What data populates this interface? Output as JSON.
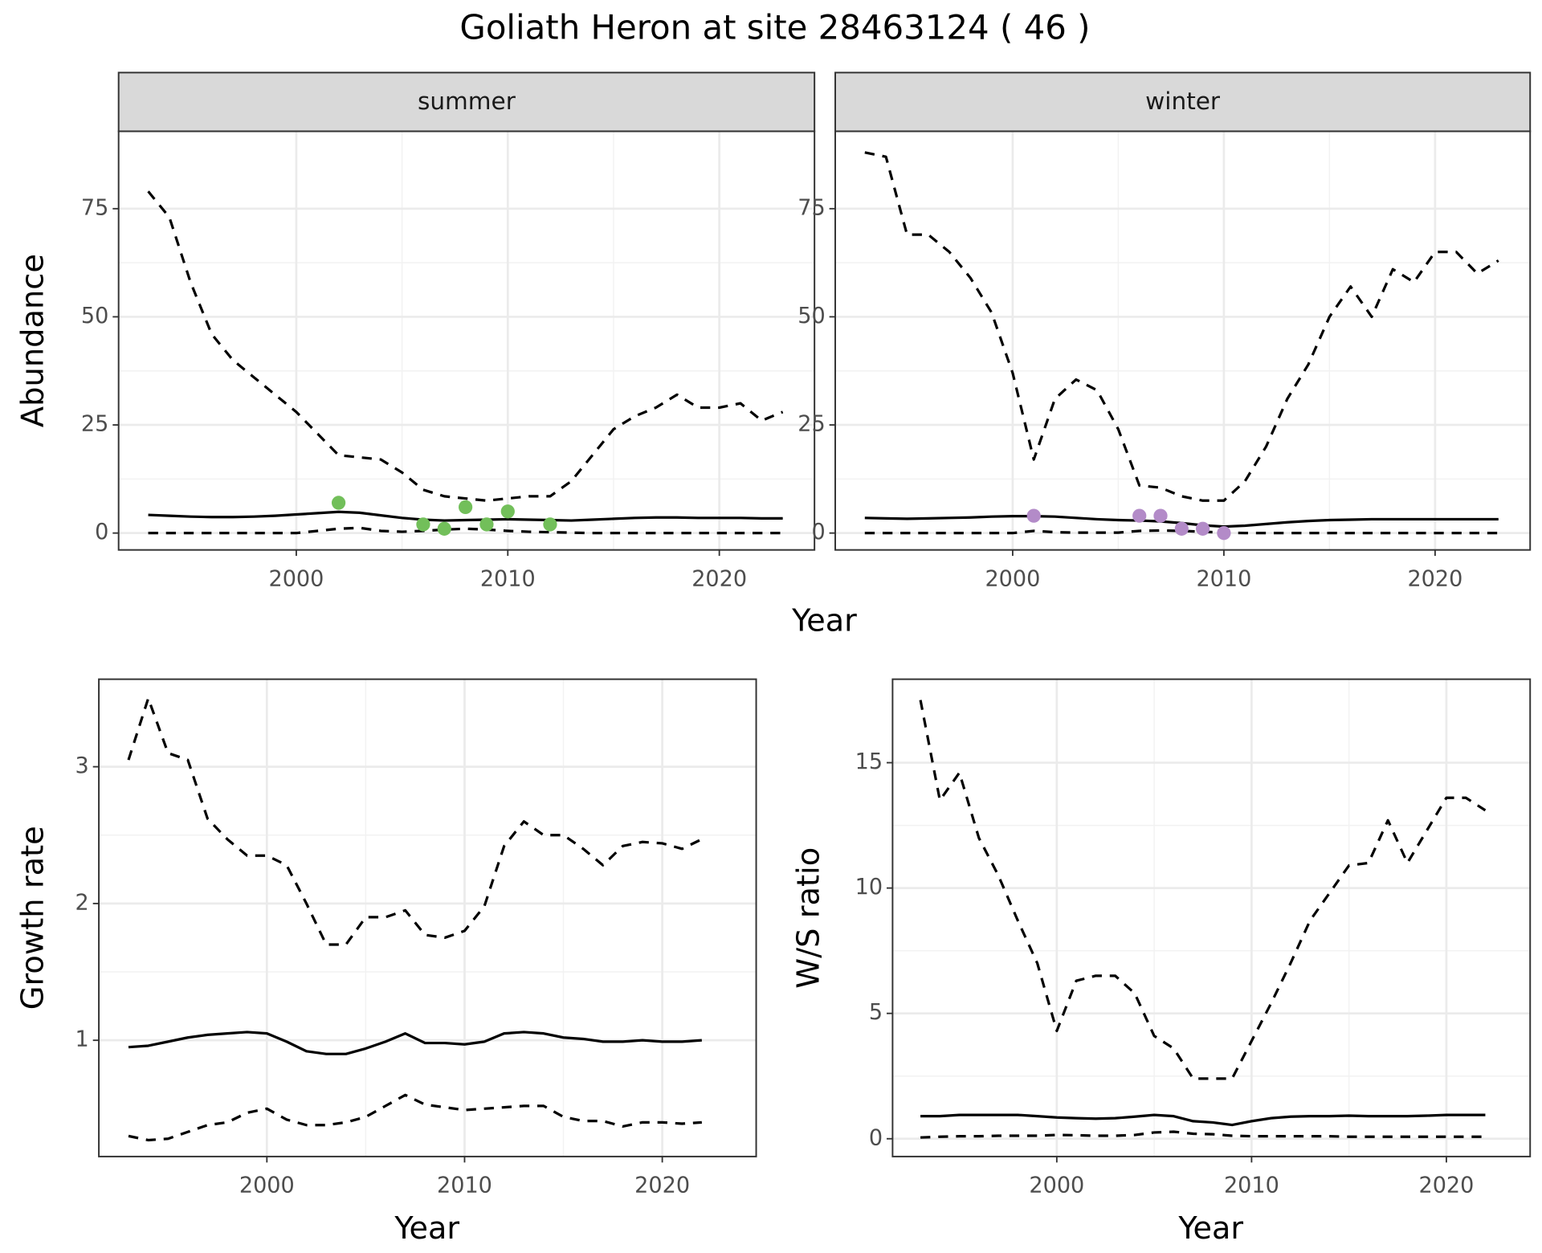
{
  "title": "Goliath Heron at site 28463124 ( 46 )",
  "chart_data": [
    {
      "type": "line",
      "facet": "summer",
      "xlabel": "Year",
      "ylabel": "Abundance",
      "xlim": [
        1991.6,
        2024.5
      ],
      "ylim": [
        -3.9,
        92.9
      ],
      "xticks": [
        2000,
        2010,
        2020
      ],
      "yticks": [
        0,
        25,
        50,
        75
      ],
      "grid": true,
      "series": [
        {
          "style": "dashed",
          "color": "#000000",
          "x": [
            1993,
            1994,
            1995,
            1996,
            1997,
            1998,
            1999,
            2000,
            2001,
            2002,
            2003,
            2004,
            2005,
            2006,
            2007,
            2008,
            2009,
            2010,
            2011,
            2012,
            2013,
            2014,
            2015,
            2016,
            2017,
            2018,
            2019,
            2020,
            2021,
            2022,
            2023
          ],
          "values": [
            79,
            73,
            58,
            46,
            40,
            36,
            32,
            28,
            23,
            18,
            17.5,
            17,
            14,
            10,
            8.5,
            8,
            7.5,
            8,
            8.5,
            8.5,
            12,
            18,
            24,
            27,
            29,
            32,
            29,
            29,
            30,
            26,
            28
          ]
        },
        {
          "style": "solid",
          "color": "#000000",
          "x": [
            1993,
            1994,
            1995,
            1996,
            1997,
            1998,
            1999,
            2000,
            2001,
            2002,
            2003,
            2004,
            2005,
            2006,
            2007,
            2008,
            2009,
            2010,
            2011,
            2012,
            2013,
            2014,
            2015,
            2016,
            2017,
            2018,
            2019,
            2020,
            2021,
            2022,
            2023
          ],
          "values": [
            4.2,
            4,
            3.8,
            3.7,
            3.7,
            3.8,
            4,
            4.3,
            4.6,
            4.9,
            4.7,
            4.1,
            3.5,
            3.1,
            2.9,
            3,
            3.1,
            3.2,
            3.1,
            3,
            2.9,
            3.1,
            3.3,
            3.5,
            3.6,
            3.6,
            3.5,
            3.5,
            3.5,
            3.4,
            3.4
          ]
        },
        {
          "style": "dashed",
          "color": "#000000",
          "x": [
            1993,
            1994,
            1995,
            1996,
            1997,
            1998,
            1999,
            2000,
            2001,
            2002,
            2003,
            2004,
            2005,
            2006,
            2007,
            2008,
            2009,
            2010,
            2011,
            2012,
            2013,
            2014,
            2015,
            2016,
            2017,
            2018,
            2019,
            2020,
            2021,
            2022,
            2023
          ],
          "values": [
            0,
            0,
            0,
            0,
            0,
            0,
            0,
            0,
            0.5,
            1,
            1.2,
            0.5,
            0.3,
            0.5,
            0.8,
            1,
            0.8,
            0.5,
            0.3,
            0.2,
            0.1,
            0,
            0,
            0,
            0,
            0,
            0,
            0,
            0,
            0,
            0
          ]
        },
        {
          "style": "points",
          "color": "#72bf5a",
          "x": [
            2002,
            2006,
            2007,
            2008,
            2009,
            2010,
            2012
          ],
          "values": [
            7,
            2,
            1,
            6,
            2,
            5,
            2
          ]
        }
      ]
    },
    {
      "type": "line",
      "facet": "winter",
      "xlim": [
        1991.6,
        2024.5
      ],
      "ylim": [
        -3.9,
        92.9
      ],
      "xticks": [
        2000,
        2010,
        2020
      ],
      "yticks": [
        0,
        25,
        50,
        75
      ],
      "grid": true,
      "series": [
        {
          "style": "dashed",
          "color": "#000000",
          "x": [
            1993,
            1994,
            1995,
            1996,
            1997,
            1998,
            1999,
            2000,
            2001,
            2002,
            2003,
            2004,
            2005,
            2006,
            2007,
            2008,
            2009,
            2010,
            2011,
            2012,
            2013,
            2014,
            2015,
            2016,
            2017,
            2018,
            2019,
            2020,
            2021,
            2022,
            2023
          ],
          "values": [
            88,
            87,
            69,
            69,
            65,
            59,
            51,
            37,
            17,
            31,
            35.5,
            33,
            24,
            11,
            10.5,
            8.5,
            7.5,
            7.5,
            12,
            20,
            31,
            39,
            50,
            57,
            50,
            61,
            58,
            65,
            65,
            60,
            63
          ]
        },
        {
          "style": "solid",
          "color": "#000000",
          "x": [
            1993,
            1994,
            1995,
            1996,
            1997,
            1998,
            1999,
            2000,
            2001,
            2002,
            2003,
            2004,
            2005,
            2006,
            2007,
            2008,
            2009,
            2010,
            2011,
            2012,
            2013,
            2014,
            2015,
            2016,
            2017,
            2018,
            2019,
            2020,
            2021,
            2022,
            2023
          ],
          "values": [
            3.5,
            3.4,
            3.3,
            3.4,
            3.5,
            3.6,
            3.8,
            3.9,
            3.9,
            3.8,
            3.5,
            3.2,
            3,
            2.9,
            2.7,
            2.3,
            1.8,
            1.5,
            1.7,
            2.1,
            2.5,
            2.8,
            3,
            3.1,
            3.2,
            3.2,
            3.2,
            3.2,
            3.2,
            3.2,
            3.2
          ]
        },
        {
          "style": "dashed",
          "color": "#000000",
          "x": [
            1993,
            1994,
            1995,
            1996,
            1997,
            1998,
            1999,
            2000,
            2001,
            2002,
            2003,
            2004,
            2005,
            2006,
            2007,
            2008,
            2009,
            2010,
            2011,
            2012,
            2013,
            2014,
            2015,
            2016,
            2017,
            2018,
            2019,
            2020,
            2021,
            2022,
            2023
          ],
          "values": [
            0,
            0,
            0,
            0,
            0,
            0,
            0,
            0,
            0.5,
            0.2,
            0.1,
            0.1,
            0.1,
            0.5,
            0.6,
            0.5,
            0.3,
            0.1,
            0,
            0,
            0,
            0,
            0,
            0,
            0,
            0,
            0,
            0,
            0,
            0,
            0
          ]
        },
        {
          "style": "points",
          "color": "#b38bc8",
          "x": [
            2001,
            2006,
            2007,
            2008,
            2009,
            2010
          ],
          "values": [
            4,
            4,
            4,
            1,
            1,
            0
          ]
        }
      ]
    },
    {
      "type": "line",
      "xlabel": "Year",
      "ylabel": "Growth rate",
      "xlim": [
        1991.5,
        2024.75
      ],
      "ylim": [
        0.15,
        3.64
      ],
      "xticks": [
        2000,
        2010,
        2020
      ],
      "yticks": [
        1,
        2,
        3
      ],
      "grid": true,
      "series": [
        {
          "style": "dashed",
          "color": "#000000",
          "x": [
            1993,
            1994,
            1995,
            1996,
            1997,
            1998,
            1999,
            2000,
            2001,
            2002,
            2003,
            2004,
            2005,
            2006,
            2007,
            2008,
            2009,
            2010,
            2011,
            2012,
            2013,
            2014,
            2015,
            2016,
            2017,
            2018,
            2019,
            2020,
            2021,
            2022
          ],
          "values": [
            3.05,
            3.5,
            3.1,
            3.05,
            2.62,
            2.47,
            2.35,
            2.35,
            2.28,
            2.0,
            1.7,
            1.7,
            1.9,
            1.9,
            1.95,
            1.77,
            1.75,
            1.8,
            1.98,
            2.42,
            2.6,
            2.5,
            2.5,
            2.4,
            2.28,
            2.42,
            2.45,
            2.44,
            2.4,
            2.47
          ]
        },
        {
          "style": "solid",
          "color": "#000000",
          "x": [
            1993,
            1994,
            1995,
            1996,
            1997,
            1998,
            1999,
            2000,
            2001,
            2002,
            2003,
            2004,
            2005,
            2006,
            2007,
            2008,
            2009,
            2010,
            2011,
            2012,
            2013,
            2014,
            2015,
            2016,
            2017,
            2018,
            2019,
            2020,
            2021,
            2022
          ],
          "values": [
            0.95,
            0.96,
            0.99,
            1.02,
            1.04,
            1.05,
            1.06,
            1.05,
            0.99,
            0.92,
            0.9,
            0.9,
            0.94,
            0.99,
            1.05,
            0.98,
            0.98,
            0.97,
            0.99,
            1.05,
            1.06,
            1.05,
            1.02,
            1.01,
            0.99,
            0.99,
            1.0,
            0.99,
            0.99,
            1.0
          ]
        },
        {
          "style": "dashed",
          "color": "#000000",
          "x": [
            1993,
            1994,
            1995,
            1996,
            1997,
            1998,
            1999,
            2000,
            2001,
            2002,
            2003,
            2004,
            2005,
            2006,
            2007,
            2008,
            2009,
            2010,
            2011,
            2012,
            2013,
            2014,
            2015,
            2016,
            2017,
            2018,
            2019,
            2020,
            2021,
            2022
          ],
          "values": [
            0.3,
            0.27,
            0.28,
            0.33,
            0.38,
            0.4,
            0.47,
            0.5,
            0.42,
            0.38,
            0.38,
            0.4,
            0.44,
            0.52,
            0.6,
            0.53,
            0.51,
            0.49,
            0.5,
            0.51,
            0.52,
            0.52,
            0.44,
            0.41,
            0.41,
            0.37,
            0.4,
            0.4,
            0.39,
            0.4
          ]
        }
      ]
    },
    {
      "type": "line",
      "xlabel": "Year",
      "ylabel": "W/S ratio",
      "xlim": [
        1991.57,
        2024.3
      ],
      "ylim": [
        -0.71,
        18.33
      ],
      "xticks": [
        2000,
        2010,
        2020
      ],
      "yticks": [
        0,
        5,
        10,
        15
      ],
      "grid": true,
      "series": [
        {
          "style": "dashed",
          "color": "#000000",
          "x": [
            1993,
            1994,
            1995,
            1996,
            1997,
            1998,
            1999,
            2000,
            2001,
            2002,
            2003,
            2004,
            2005,
            2006,
            2007,
            2008,
            2009,
            2010,
            2011,
            2012,
            2013,
            2014,
            2015,
            2016,
            2017,
            2018,
            2019,
            2020,
            2021,
            2022
          ],
          "values": [
            17.5,
            13.5,
            14.6,
            12,
            10.5,
            8.7,
            7,
            4.3,
            6.3,
            6.5,
            6.5,
            5.8,
            4.1,
            3.6,
            2.4,
            2.4,
            2.4,
            3.9,
            5.4,
            7,
            8.7,
            9.8,
            10.9,
            11,
            12.7,
            11,
            12.3,
            13.6,
            13.6,
            13.1
          ]
        },
        {
          "style": "solid",
          "color": "#000000",
          "x": [
            1993,
            1994,
            1995,
            1996,
            1997,
            1998,
            1999,
            2000,
            2001,
            2002,
            2003,
            2004,
            2005,
            2006,
            2007,
            2008,
            2009,
            2010,
            2011,
            2012,
            2013,
            2014,
            2015,
            2016,
            2017,
            2018,
            2019,
            2020,
            2021,
            2022
          ],
          "values": [
            0.9,
            0.9,
            0.95,
            0.95,
            0.95,
            0.95,
            0.9,
            0.85,
            0.82,
            0.8,
            0.82,
            0.88,
            0.95,
            0.9,
            0.7,
            0.65,
            0.55,
            0.7,
            0.82,
            0.88,
            0.9,
            0.9,
            0.92,
            0.9,
            0.9,
            0.9,
            0.92,
            0.95,
            0.95,
            0.95
          ]
        },
        {
          "style": "dashed",
          "color": "#000000",
          "x": [
            1993,
            1994,
            1995,
            1996,
            1997,
            1998,
            1999,
            2000,
            2001,
            2002,
            2003,
            2004,
            2005,
            2006,
            2007,
            2008,
            2009,
            2010,
            2011,
            2012,
            2013,
            2014,
            2015,
            2016,
            2017,
            2018,
            2019,
            2020,
            2021,
            2022
          ],
          "values": [
            0.05,
            0.08,
            0.1,
            0.1,
            0.12,
            0.12,
            0.12,
            0.15,
            0.14,
            0.12,
            0.12,
            0.15,
            0.25,
            0.28,
            0.2,
            0.18,
            0.12,
            0.1,
            0.1,
            0.1,
            0.1,
            0.1,
            0.08,
            0.08,
            0.08,
            0.08,
            0.08,
            0.08,
            0.08,
            0.08
          ]
        }
      ]
    }
  ]
}
